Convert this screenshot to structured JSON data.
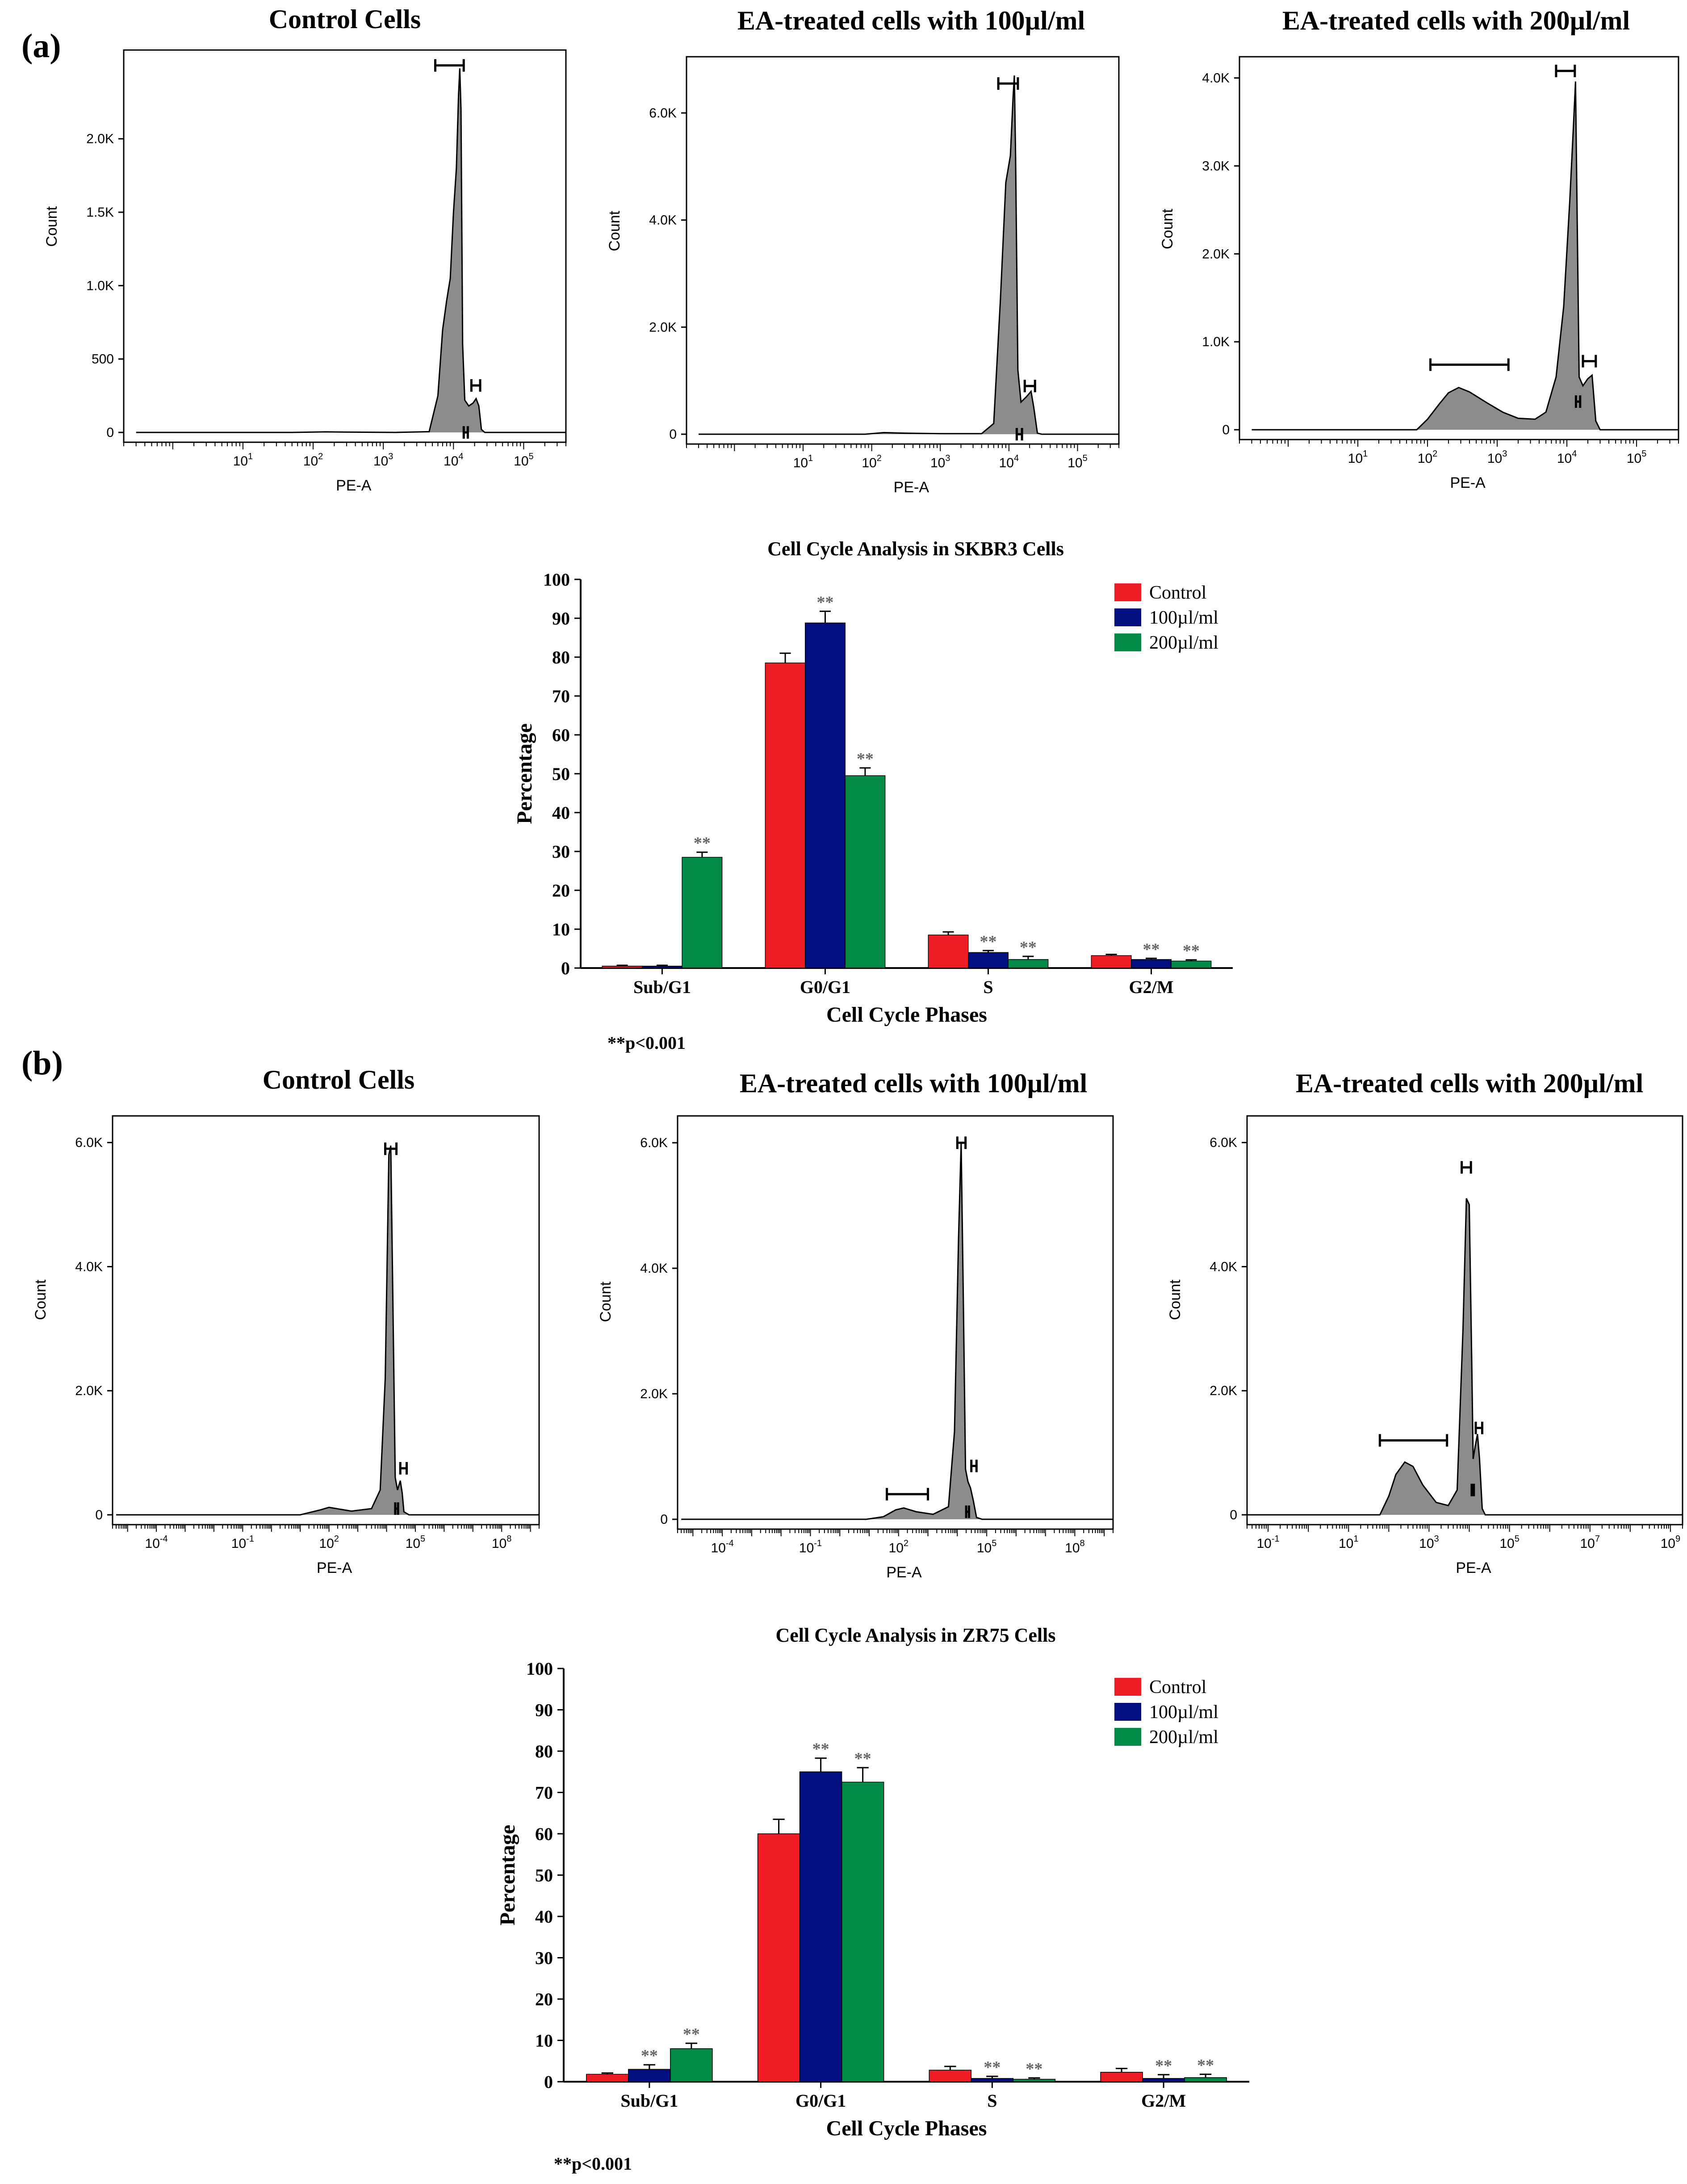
{
  "figure": {
    "panel_a_label": "(a)",
    "panel_b_label": "(b)",
    "p_note_a": "**p<0.001",
    "p_note_b": "**p<0.001"
  },
  "chart_data": [
    {
      "type": "area",
      "panel": "a",
      "title": "Control Cells",
      "xlabel": "PE-A",
      "ylabel": "Count",
      "x_scale": "log10",
      "xlim": [
        0.2,
        400000
      ],
      "ylim": [
        0,
        2550
      ],
      "y_ticks": [
        {
          "v": 0,
          "t": "0"
        },
        {
          "v": 500,
          "t": "500"
        },
        {
          "v": 1000,
          "t": "1.0K"
        },
        {
          "v": 1500,
          "t": "1.5K"
        },
        {
          "v": 2000,
          "t": "2.0K"
        }
      ],
      "x_ticks": [
        {
          "v": 10,
          "base": "10",
          "exp": "1"
        },
        {
          "v": 100,
          "base": "10",
          "exp": "2"
        },
        {
          "v": 1000,
          "base": "10",
          "exp": "3"
        },
        {
          "v": 10000,
          "base": "10",
          "exp": "4"
        },
        {
          "v": 100000,
          "base": "10",
          "exp": "5"
        }
      ],
      "curve": [
        [
          0.3,
          0
        ],
        [
          50,
          0
        ],
        [
          150,
          4
        ],
        [
          300,
          2
        ],
        [
          1500,
          0
        ],
        [
          4500,
          5
        ],
        [
          6000,
          250
        ],
        [
          7000,
          700
        ],
        [
          8000,
          900
        ],
        [
          9000,
          1050
        ],
        [
          10000,
          1500
        ],
        [
          11000,
          1800
        ],
        [
          11800,
          2300
        ],
        [
          12300,
          2480
        ],
        [
          12800,
          2200
        ],
        [
          13500,
          600
        ],
        [
          14500,
          220
        ],
        [
          16500,
          180
        ],
        [
          19000,
          200
        ],
        [
          21000,
          230
        ],
        [
          23000,
          180
        ],
        [
          25000,
          20
        ],
        [
          28000,
          0
        ],
        [
          400000,
          0
        ]
      ],
      "gates": [
        {
          "x1": 5500,
          "x2": 14000,
          "y": 2500
        },
        {
          "x1": 18000,
          "x2": 24000,
          "y": 320
        },
        {
          "x1": 14000,
          "x2": 16000,
          "y": 0
        }
      ]
    },
    {
      "type": "area",
      "panel": "a",
      "title": "EA-treated cells with 100µl/ml",
      "xlabel": "PE-A",
      "ylabel": "Count",
      "x_scale": "log10",
      "xlim": [
        0.2,
        400000
      ],
      "ylim": [
        0,
        6900
      ],
      "y_ticks": [
        {
          "v": 0,
          "t": "0"
        },
        {
          "v": 2000,
          "t": "2.0K"
        },
        {
          "v": 4000,
          "t": "4.0K"
        },
        {
          "v": 6000,
          "t": "6.0K"
        }
      ],
      "x_ticks": [
        {
          "v": 10,
          "base": "10",
          "exp": "1"
        },
        {
          "v": 100,
          "base": "10",
          "exp": "2"
        },
        {
          "v": 1000,
          "base": "10",
          "exp": "3"
        },
        {
          "v": 10000,
          "base": "10",
          "exp": "4"
        },
        {
          "v": 100000,
          "base": "10",
          "exp": "5"
        }
      ],
      "curve": [
        [
          0.3,
          0
        ],
        [
          80,
          0
        ],
        [
          150,
          30
        ],
        [
          300,
          20
        ],
        [
          1000,
          10
        ],
        [
          4000,
          10
        ],
        [
          6000,
          200
        ],
        [
          7500,
          2500
        ],
        [
          9000,
          4700
        ],
        [
          10500,
          5200
        ],
        [
          11500,
          6300
        ],
        [
          12000,
          6700
        ],
        [
          12500,
          5200
        ],
        [
          13500,
          1200
        ],
        [
          15000,
          600
        ],
        [
          18000,
          700
        ],
        [
          21000,
          800
        ],
        [
          23000,
          500
        ],
        [
          26000,
          20
        ],
        [
          30000,
          0
        ],
        [
          400000,
          0
        ]
      ],
      "gates": [
        {
          "x1": 7000,
          "x2": 13500,
          "y": 6550
        },
        {
          "x1": 17000,
          "x2": 24000,
          "y": 900
        },
        {
          "x1": 13000,
          "x2": 15500,
          "y": 0
        }
      ]
    },
    {
      "type": "area",
      "panel": "a",
      "title": "EA-treated cells with 200µl/ml",
      "xlabel": "PE-A",
      "ylabel": "Count",
      "x_scale": "log10",
      "xlim": [
        0.2,
        400000
      ],
      "ylim": [
        0,
        4150
      ],
      "y_ticks": [
        {
          "v": 0,
          "t": "0"
        },
        {
          "v": 1000,
          "t": "1.0K"
        },
        {
          "v": 2000,
          "t": "2.0K"
        },
        {
          "v": 3000,
          "t": "3.0K"
        },
        {
          "v": 4000,
          "t": "4.0K"
        }
      ],
      "x_ticks": [
        {
          "v": 10,
          "base": "10",
          "exp": "1"
        },
        {
          "v": 100,
          "base": "10",
          "exp": "2"
        },
        {
          "v": 1000,
          "base": "10",
          "exp": "3"
        },
        {
          "v": 10000,
          "base": "10",
          "exp": "4"
        },
        {
          "v": 100000,
          "base": "10",
          "exp": "5"
        }
      ],
      "curve": [
        [
          0.3,
          0
        ],
        [
          70,
          0
        ],
        [
          100,
          120
        ],
        [
          150,
          300
        ],
        [
          200,
          420
        ],
        [
          280,
          480
        ],
        [
          400,
          430
        ],
        [
          700,
          310
        ],
        [
          1200,
          200
        ],
        [
          2000,
          130
        ],
        [
          3500,
          120
        ],
        [
          5000,
          200
        ],
        [
          7000,
          600
        ],
        [
          9000,
          1400
        ],
        [
          11000,
          2600
        ],
        [
          12500,
          3500
        ],
        [
          13300,
          3960
        ],
        [
          14000,
          2500
        ],
        [
          15000,
          600
        ],
        [
          17000,
          500
        ],
        [
          20000,
          580
        ],
        [
          23000,
          620
        ],
        [
          26000,
          100
        ],
        [
          30000,
          0
        ],
        [
          400000,
          0
        ]
      ],
      "gates": [
        {
          "x1": 110,
          "x2": 1450,
          "y": 740
        },
        {
          "x1": 7000,
          "x2": 13000,
          "y": 4080
        },
        {
          "x1": 17000,
          "x2": 26000,
          "y": 780
        },
        {
          "x1": 13500,
          "x2": 15500,
          "y": 320
        }
      ]
    },
    {
      "type": "bar",
      "panel": "a",
      "title": "Cell Cycle Analysis in SKBR3 Cells",
      "xlabel": "Cell Cycle Phases",
      "ylabel": "Percentage",
      "ylim": [
        0,
        100
      ],
      "y_ticks": [
        0,
        10,
        20,
        30,
        40,
        50,
        60,
        70,
        80,
        90,
        100
      ],
      "categories": [
        "Sub/G1",
        "G0/G1",
        "S",
        "G2/M"
      ],
      "series": [
        {
          "name": "Control",
          "color": "#ee1c24",
          "values": [
            0.5,
            78.5,
            8.5,
            3.2
          ],
          "errors": [
            0.2,
            2.5,
            0.8,
            0.3
          ],
          "significant": [
            false,
            false,
            false,
            false
          ]
        },
        {
          "name": "100µl/ml",
          "color": "#000e80",
          "values": [
            0.5,
            88.8,
            4.0,
            2.2
          ],
          "errors": [
            0.2,
            3.0,
            0.5,
            0.3
          ],
          "significant": [
            false,
            true,
            true,
            true
          ]
        },
        {
          "name": "200µl/ml",
          "color": "#008a45",
          "values": [
            28.5,
            49.5,
            2.2,
            1.8
          ],
          "errors": [
            1.3,
            2.0,
            0.8,
            0.3
          ],
          "significant": [
            true,
            true,
            true,
            true
          ]
        }
      ],
      "significance_label": "**",
      "legend_position": "top-right"
    },
    {
      "type": "area",
      "panel": "b",
      "title": "Control Cells",
      "xlabel": "PE-A",
      "ylabel": "Count",
      "x_scale": "log10",
      "xlim": [
        3e-06,
        2000000000
      ],
      "ylim": [
        0,
        6300
      ],
      "y_ticks": [
        {
          "v": 0,
          "t": "0"
        },
        {
          "v": 2000,
          "t": "2.0K"
        },
        {
          "v": 4000,
          "t": "4.0K"
        },
        {
          "v": 6000,
          "t": "6.0K"
        }
      ],
      "x_ticks": [
        {
          "v": 0.0001,
          "base": "10",
          "exp": "-4"
        },
        {
          "v": 0.1,
          "base": "10",
          "exp": "-1"
        },
        {
          "v": 100,
          "base": "10",
          "exp": "2"
        },
        {
          "v": 100000,
          "base": "10",
          "exp": "5"
        },
        {
          "v": 100000000,
          "base": "10",
          "exp": "8"
        }
      ],
      "curve": [
        [
          4e-06,
          0
        ],
        [
          10,
          0
        ],
        [
          50,
          80
        ],
        [
          100,
          120
        ],
        [
          600,
          60
        ],
        [
          3000,
          100
        ],
        [
          6000,
          400
        ],
        [
          9000,
          2200
        ],
        [
          12000,
          5800
        ],
        [
          14000,
          5950
        ],
        [
          16000,
          4000
        ],
        [
          20000,
          600
        ],
        [
          24000,
          400
        ],
        [
          30000,
          550
        ],
        [
          35000,
          350
        ],
        [
          40000,
          50
        ],
        [
          60000,
          0
        ],
        [
          2000000000,
          0
        ]
      ],
      "gates": [
        {
          "x1": 9000,
          "x2": 22000,
          "y": 5900
        },
        {
          "x1": 30000,
          "x2": 50000,
          "y": 750
        },
        {
          "x1": 20000,
          "x2": 25000,
          "y": 100
        }
      ]
    },
    {
      "type": "area",
      "panel": "b",
      "title": "EA-treated cells with 100µl/ml",
      "xlabel": "PE-A",
      "ylabel": "Count",
      "x_scale": "log10",
      "xlim": [
        3e-06,
        2000000000
      ],
      "ylim": [
        0,
        6300
      ],
      "y_ticks": [
        {
          "v": 0,
          "t": "0"
        },
        {
          "v": 2000,
          "t": "2.0K"
        },
        {
          "v": 4000,
          "t": "4.0K"
        },
        {
          "v": 6000,
          "t": "6.0K"
        }
      ],
      "x_ticks": [
        {
          "v": 0.0001,
          "base": "10",
          "exp": "-4"
        },
        {
          "v": 0.1,
          "base": "10",
          "exp": "-1"
        },
        {
          "v": 100,
          "base": "10",
          "exp": "2"
        },
        {
          "v": 100000,
          "base": "10",
          "exp": "5"
        },
        {
          "v": 100000000,
          "base": "10",
          "exp": "8"
        }
      ],
      "curve": [
        [
          4e-06,
          0
        ],
        [
          8,
          0
        ],
        [
          30,
          40
        ],
        [
          80,
          150
        ],
        [
          150,
          180
        ],
        [
          400,
          120
        ],
        [
          1500,
          80
        ],
        [
          5000,
          200
        ],
        [
          8000,
          1400
        ],
        [
          11000,
          4500
        ],
        [
          13500,
          6000
        ],
        [
          16000,
          3500
        ],
        [
          19000,
          800
        ],
        [
          23000,
          600
        ],
        [
          28000,
          500
        ],
        [
          35000,
          300
        ],
        [
          45000,
          30
        ],
        [
          70000,
          0
        ],
        [
          2000000000,
          0
        ]
      ],
      "gates": [
        {
          "x1": 40,
          "x2": 1000,
          "y": 400
        },
        {
          "x1": 10000,
          "x2": 19000,
          "y": 6000
        },
        {
          "x1": 30000,
          "x2": 45000,
          "y": 850
        },
        {
          "x1": 20000,
          "x2": 25000,
          "y": 120
        }
      ]
    },
    {
      "type": "area",
      "panel": "b",
      "title": "EA-treated cells with 200µl/ml",
      "xlabel": "PE-A",
      "ylabel": "Count",
      "x_scale": "log10",
      "xlim": [
        0.03,
        2000000000
      ],
      "ylim": [
        0,
        6300
      ],
      "y_ticks": [
        {
          "v": 0,
          "t": "0"
        },
        {
          "v": 2000,
          "t": "2.0K"
        },
        {
          "v": 4000,
          "t": "4.0K"
        },
        {
          "v": 6000,
          "t": "6.0K"
        }
      ],
      "x_ticks": [
        {
          "v": 0.1,
          "base": "10",
          "exp": "-1"
        },
        {
          "v": 10,
          "base": "10",
          "exp": "1"
        },
        {
          "v": 1000,
          "base": "10",
          "exp": "3"
        },
        {
          "v": 100000,
          "base": "10",
          "exp": "5"
        },
        {
          "v": 10000000,
          "base": "10",
          "exp": "7"
        },
        {
          "v": 1000000000,
          "base": "10",
          "exp": "9"
        }
      ],
      "curve": [
        [
          0.03,
          0
        ],
        [
          60,
          0
        ],
        [
          100,
          300
        ],
        [
          150,
          650
        ],
        [
          250,
          850
        ],
        [
          400,
          780
        ],
        [
          700,
          480
        ],
        [
          1500,
          200
        ],
        [
          3000,
          150
        ],
        [
          5000,
          400
        ],
        [
          7000,
          3000
        ],
        [
          8500,
          5100
        ],
        [
          10000,
          5000
        ],
        [
          11500,
          2500
        ],
        [
          12500,
          900
        ],
        [
          14000,
          1100
        ],
        [
          16000,
          1300
        ],
        [
          18000,
          900
        ],
        [
          21000,
          100
        ],
        [
          25000,
          0
        ],
        [
          2000000000,
          0
        ]
      ],
      "gates": [
        {
          "x1": 60,
          "x2": 2800,
          "y": 1200
        },
        {
          "x1": 6500,
          "x2": 11000,
          "y": 5600
        },
        {
          "x1": 14500,
          "x2": 21000,
          "y": 1400
        },
        {
          "x1": 11500,
          "x2": 13000,
          "y": 400
        }
      ]
    },
    {
      "type": "bar",
      "panel": "b",
      "title": "Cell Cycle Analysis in ZR75 Cells",
      "xlabel": "Cell Cycle Phases",
      "ylabel": "Percentage",
      "ylim": [
        0,
        100
      ],
      "y_ticks": [
        0,
        10,
        20,
        30,
        40,
        50,
        60,
        70,
        80,
        90,
        100
      ],
      "categories": [
        "Sub/G1",
        "G0/G1",
        "S",
        "G2/M"
      ],
      "series": [
        {
          "name": "Control",
          "color": "#ee1c24",
          "values": [
            1.8,
            60.0,
            2.8,
            2.3
          ],
          "errors": [
            0.3,
            3.5,
            0.9,
            0.9
          ],
          "significant": [
            false,
            false,
            false,
            false
          ]
        },
        {
          "name": "100µl/ml",
          "color": "#000e80",
          "values": [
            3.0,
            75.0,
            0.8,
            0.8
          ],
          "errors": [
            1.1,
            3.3,
            0.5,
            0.9
          ],
          "significant": [
            true,
            true,
            true,
            true
          ]
        },
        {
          "name": "200µl/ml",
          "color": "#008a45",
          "values": [
            8.0,
            72.5,
            0.6,
            1.0
          ],
          "errors": [
            1.3,
            3.5,
            0.3,
            0.8
          ],
          "significant": [
            true,
            true,
            true,
            true
          ]
        }
      ],
      "significance_label": "**",
      "legend_position": "top-right"
    }
  ]
}
